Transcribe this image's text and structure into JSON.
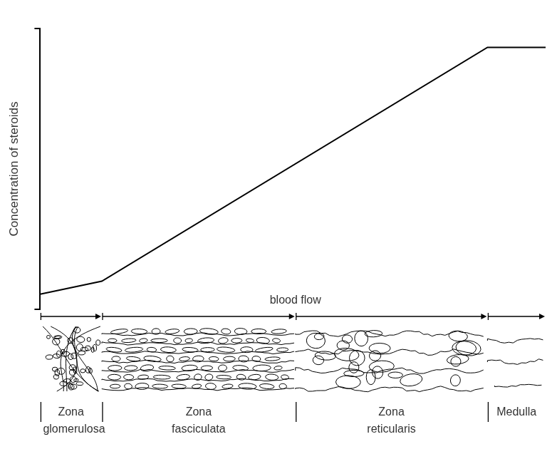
{
  "chart_data": {
    "type": "line",
    "y_label": "Concentration of steroids",
    "x": [
      0,
      12.2,
      88.5,
      100
    ],
    "values": [
      5.4,
      10,
      93.3,
      93.3
    ],
    "color": "#000000",
    "xlim": [
      0,
      100
    ],
    "ylim": [
      0,
      100
    ],
    "yticks": [
      0,
      100
    ],
    "tick_labels": false,
    "grid": false,
    "annotation": "blood flow",
    "zones": [
      {
        "name": "Zona glomerulosa",
        "start": 0,
        "end": 12.2
      },
      {
        "name": "Zona fasciculata",
        "start": 12.2,
        "end": 50.5
      },
      {
        "name": "Zona reticularis",
        "start": 50.5,
        "end": 88.5
      },
      {
        "name": "Medulla",
        "start": 88.5,
        "end": 100
      }
    ]
  }
}
